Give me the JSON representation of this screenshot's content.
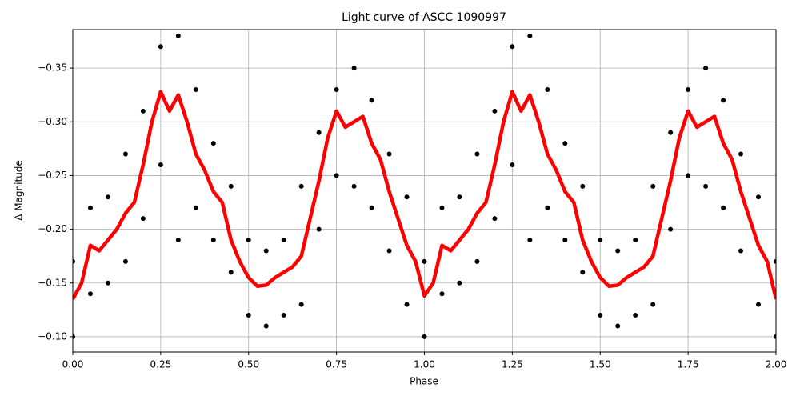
{
  "chart_data": {
    "type": "scatter-line",
    "title": "Light curve of ASCC 1090997",
    "x_label": "Phase",
    "y_label": "Δ Magnitude",
    "xlim": [
      0,
      2
    ],
    "ylim": [
      -0.0858,
      -0.3858
    ],
    "grid": true,
    "xticks": [
      {
        "value": 0,
        "label": "0.00"
      },
      {
        "value": 0.25,
        "label": "0.25"
      },
      {
        "value": 0.5,
        "label": "0.50"
      },
      {
        "value": 0.75,
        "label": "0.75"
      },
      {
        "value": 1,
        "label": "1.00"
      },
      {
        "value": 1.25,
        "label": "1.25"
      },
      {
        "value": 1.5,
        "label": "1.50"
      },
      {
        "value": 1.75,
        "label": "1.75"
      },
      {
        "value": 2,
        "label": "2.00"
      }
    ],
    "yticks": [
      {
        "value": -0.35,
        "label": "−0.35"
      },
      {
        "value": -0.3,
        "label": "−0.30"
      },
      {
        "value": -0.25,
        "label": "−0.25"
      },
      {
        "value": -0.2,
        "label": "−0.20"
      },
      {
        "value": -0.15,
        "label": "−0.15"
      },
      {
        "value": -0.1,
        "label": "−0.10"
      }
    ],
    "series": [
      {
        "style": "points",
        "color": "#000000",
        "x": [
          0,
          0.05,
          0.1,
          0.15,
          0.2,
          0.25,
          0.3,
          0.35,
          0.4,
          0.45,
          0.5,
          0.55,
          0.6,
          0.65,
          0.7,
          0.75,
          0.8,
          0.85,
          0.9,
          0.95,
          1,
          1.05,
          1.1,
          1.15,
          1.2,
          1.25,
          1.3,
          1.35,
          1.4,
          1.45,
          1.5,
          1.55,
          1.6,
          1.65,
          1.7,
          1.75,
          1.8,
          1.85,
          1.9,
          1.95,
          2,
          0,
          0.05,
          0.1,
          0.15,
          0.2,
          0.25,
          0.3,
          0.35,
          0.4,
          0.45,
          0.5,
          0.55,
          0.6,
          0.65,
          0.7,
          0.75,
          0.8,
          0.85,
          0.9,
          0.95,
          1,
          1.05,
          1.1,
          1.15,
          1.2,
          1.25,
          1.3,
          1.35,
          1.4,
          1.45,
          1.5,
          1.55,
          1.6,
          1.65,
          1.7,
          1.75,
          1.8,
          1.85,
          1.9,
          1.95,
          2
        ],
        "values": [
          -0.17,
          -0.22,
          -0.23,
          -0.27,
          -0.31,
          -0.37,
          -0.38,
          -0.33,
          -0.28,
          -0.24,
          -0.19,
          -0.18,
          -0.19,
          -0.24,
          -0.29,
          -0.33,
          -0.35,
          -0.32,
          -0.27,
          -0.23,
          -0.17,
          -0.22,
          -0.23,
          -0.27,
          -0.31,
          -0.37,
          -0.38,
          -0.33,
          -0.28,
          -0.24,
          -0.19,
          -0.18,
          -0.19,
          -0.24,
          -0.29,
          -0.33,
          -0.35,
          -0.32,
          -0.27,
          -0.23,
          -0.17,
          -0.1,
          -0.14,
          -0.15,
          -0.17,
          -0.21,
          -0.26,
          -0.19,
          -0.22,
          -0.19,
          -0.16,
          -0.12,
          -0.11,
          -0.12,
          -0.13,
          -0.2,
          -0.25,
          -0.24,
          -0.22,
          -0.18,
          -0.13,
          -0.1,
          -0.14,
          -0.15,
          -0.17,
          -0.21,
          -0.26,
          -0.19,
          -0.22,
          -0.19,
          -0.16,
          -0.12,
          -0.11,
          -0.12,
          -0.13,
          -0.2,
          -0.25,
          -0.24,
          -0.22,
          -0.18,
          -0.13,
          -0.1
        ]
      },
      {
        "style": "line",
        "color": "#ff0000",
        "x": [
          0,
          0.025,
          0.05,
          0.075,
          0.1,
          0.125,
          0.15,
          0.175,
          0.2,
          0.225,
          0.25,
          0.275,
          0.3,
          0.325,
          0.35,
          0.375,
          0.4,
          0.425,
          0.45,
          0.475,
          0.5,
          0.525,
          0.55,
          0.575,
          0.6,
          0.625,
          0.65,
          0.675,
          0.7,
          0.725,
          0.75,
          0.775,
          0.8,
          0.825,
          0.85,
          0.875,
          0.9,
          0.925,
          0.95,
          0.975,
          1,
          1.025,
          1.05,
          1.075,
          1.1,
          1.125,
          1.15,
          1.175,
          1.2,
          1.225,
          1.25,
          1.275,
          1.3,
          1.325,
          1.35,
          1.375,
          1.4,
          1.425,
          1.45,
          1.475,
          1.5,
          1.525,
          1.55,
          1.575,
          1.6,
          1.625,
          1.65,
          1.675,
          1.7,
          1.725,
          1.75,
          1.775,
          1.8,
          1.825,
          1.85,
          1.875,
          1.9,
          1.925,
          1.95,
          1.975,
          2
        ],
        "values": [
          -0.135,
          -0.15,
          -0.185,
          -0.18,
          -0.19,
          -0.2,
          -0.215,
          -0.225,
          -0.26,
          -0.3,
          -0.328,
          -0.31,
          -0.325,
          -0.3,
          -0.27,
          -0.255,
          -0.235,
          -0.225,
          -0.19,
          -0.17,
          -0.155,
          -0.147,
          -0.148,
          -0.155,
          -0.16,
          -0.165,
          -0.175,
          -0.21,
          -0.245,
          -0.285,
          -0.31,
          -0.295,
          -0.3,
          -0.305,
          -0.28,
          -0.265,
          -0.235,
          -0.21,
          -0.185,
          -0.17,
          -0.138,
          -0.15,
          -0.185,
          -0.18,
          -0.19,
          -0.2,
          -0.215,
          -0.225,
          -0.26,
          -0.3,
          -0.328,
          -0.31,
          -0.325,
          -0.3,
          -0.27,
          -0.255,
          -0.235,
          -0.225,
          -0.19,
          -0.17,
          -0.155,
          -0.147,
          -0.148,
          -0.155,
          -0.16,
          -0.165,
          -0.175,
          -0.21,
          -0.245,
          -0.285,
          -0.31,
          -0.295,
          -0.3,
          -0.305,
          -0.28,
          -0.265,
          -0.235,
          -0.21,
          -0.185,
          -0.17,
          -0.135
        ]
      }
    ]
  }
}
